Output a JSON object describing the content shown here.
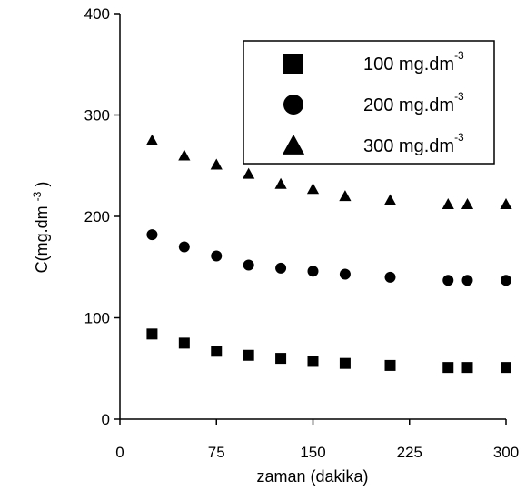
{
  "chart_data": {
    "type": "scatter",
    "title": "",
    "xlabel": "zaman (dakika)",
    "ylabel": {
      "base": "C(mg.dm",
      "sup": "-3",
      "close": ")"
    },
    "xlim": [
      0,
      300
    ],
    "ylim": [
      0,
      400
    ],
    "xticks": [
      0,
      75,
      150,
      225,
      300
    ],
    "yticks": [
      0,
      100,
      200,
      300,
      400
    ],
    "grid": false,
    "legend_position": "top-right",
    "x": [
      25,
      50,
      75,
      100,
      125,
      150,
      175,
      210,
      255,
      270,
      300
    ],
    "series": [
      {
        "label": {
          "base": "100 mg.dm",
          "sup": "-3"
        },
        "marker": "square",
        "color": "#000000",
        "values": [
          84,
          75,
          67,
          63,
          60,
          57,
          55,
          53,
          51,
          51,
          51
        ]
      },
      {
        "label": {
          "base": "200 mg.dm",
          "sup": "-3"
        },
        "marker": "circle",
        "color": "#000000",
        "values": [
          182,
          170,
          161,
          152,
          149,
          146,
          143,
          140,
          137,
          137,
          137
        ]
      },
      {
        "label": {
          "base": "300 mg.dm",
          "sup": "-3"
        },
        "marker": "triangle",
        "color": "#000000",
        "values": [
          275,
          260,
          251,
          242,
          232,
          227,
          220,
          216,
          212,
          212,
          212
        ]
      }
    ]
  }
}
